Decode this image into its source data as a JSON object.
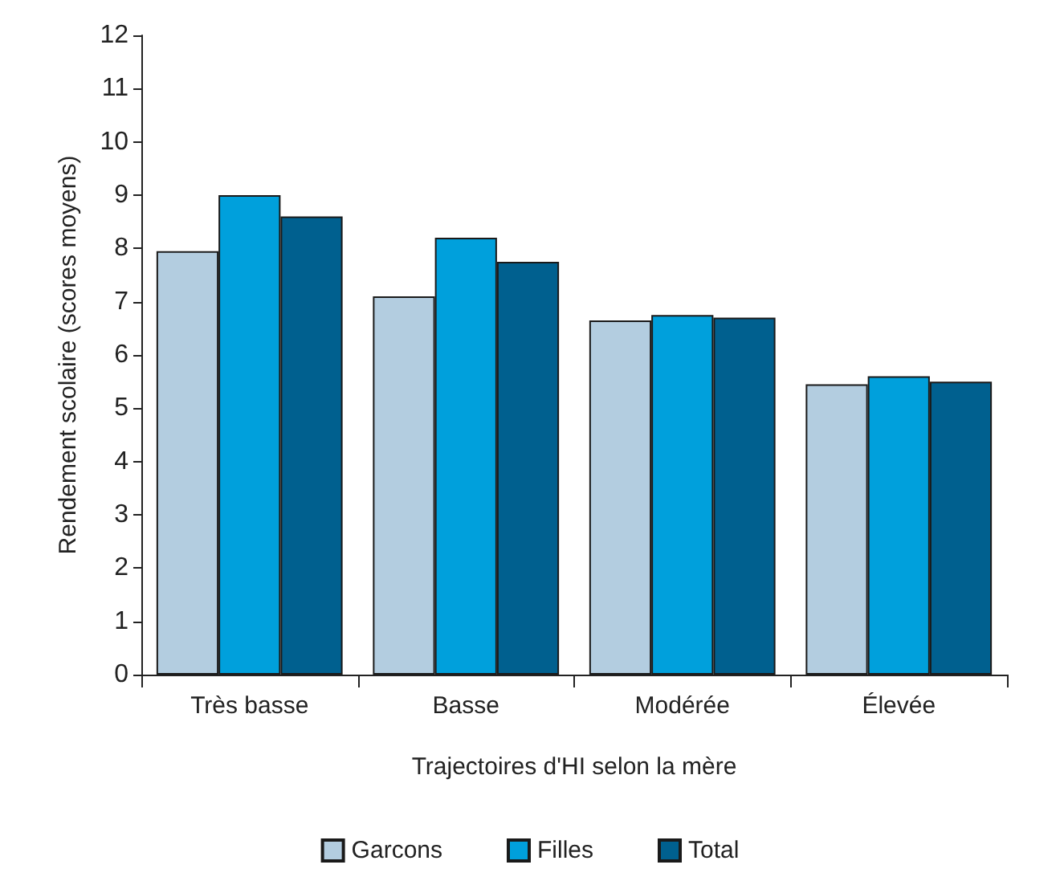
{
  "chart_data": {
    "type": "bar",
    "xlabel": "Trajectoires d'HI selon la mère",
    "ylabel": "Rendement scolaire (scores moyens)",
    "categories": [
      "Très basse",
      "Basse",
      "Modérée",
      "Élevée"
    ],
    "series": [
      {
        "name": "Garcons",
        "color": "#b3cde0",
        "values": [
          7.95,
          7.1,
          6.65,
          5.45
        ]
      },
      {
        "name": "Filles",
        "color": "#00a0dc",
        "values": [
          9.0,
          8.2,
          6.75,
          5.6
        ]
      },
      {
        "name": "Total",
        "color": "#00608f",
        "values": [
          8.6,
          7.75,
          6.7,
          5.5
        ]
      }
    ],
    "ylim": [
      0,
      12
    ],
    "yticks": [
      0,
      1,
      2,
      3,
      4,
      5,
      6,
      7,
      8,
      9,
      10,
      11,
      12
    ],
    "grid": false,
    "legend": "bottom"
  }
}
